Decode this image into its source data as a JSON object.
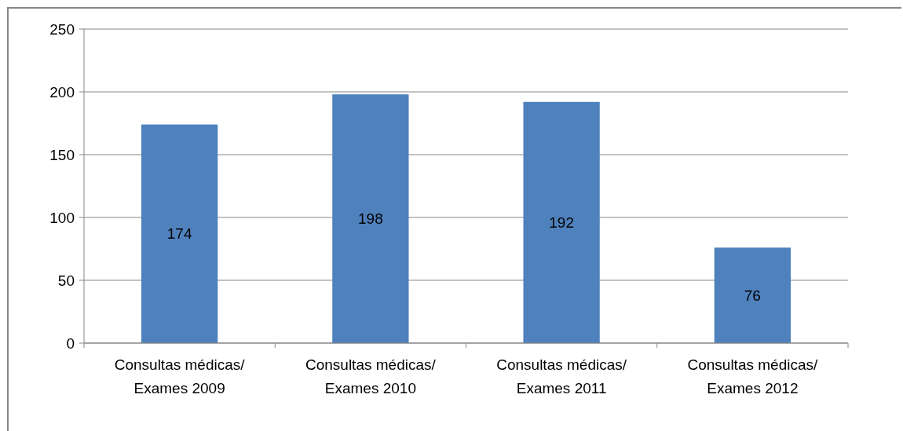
{
  "chart_data": {
    "type": "bar",
    "categories": [
      "Consultas médicas/ Exames 2009",
      "Consultas médicas/ Exames 2010",
      "Consultas médicas/ Exames 2011",
      "Consultas médicas/ Exames 2012"
    ],
    "values": [
      174,
      198,
      192,
      76
    ],
    "color": "#4f81bd",
    "ylim": [
      0,
      250
    ],
    "yticks": [
      0,
      50,
      100,
      150,
      200,
      250
    ],
    "grid": "y",
    "data_labels": true
  }
}
